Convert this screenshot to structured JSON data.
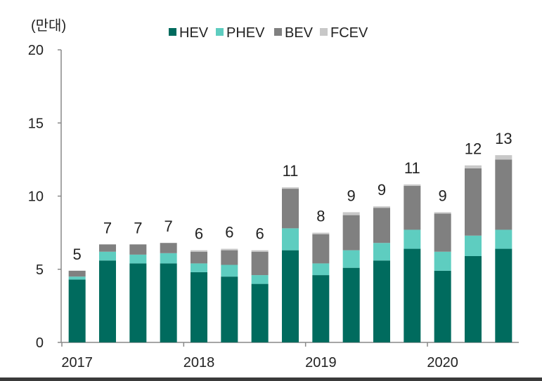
{
  "chart_data": {
    "type": "bar",
    "stacked": true,
    "unit_label": "(만대)",
    "ylim": [
      0,
      20
    ],
    "yticks": [
      0,
      5,
      10,
      15,
      20
    ],
    "year_labels": [
      "2017",
      "2018",
      "2019",
      "2020"
    ],
    "legend_position": "top",
    "grid": false,
    "series": [
      {
        "name": "HEV",
        "color": "#006b5e",
        "values": [
          4.3,
          5.6,
          5.4,
          5.4,
          4.8,
          4.5,
          4.0,
          6.3,
          4.6,
          5.1,
          5.6,
          6.4,
          4.9,
          5.9,
          6.4
        ]
      },
      {
        "name": "PHEV",
        "color": "#5ecdc0",
        "values": [
          0.2,
          0.6,
          0.6,
          0.7,
          0.6,
          0.8,
          0.6,
          1.5,
          0.8,
          1.2,
          1.2,
          1.3,
          1.3,
          1.4,
          1.3
        ]
      },
      {
        "name": "BEV",
        "color": "#808080",
        "values": [
          0.4,
          0.5,
          0.7,
          0.7,
          0.8,
          1.0,
          1.6,
          2.7,
          2.0,
          2.4,
          2.4,
          3.0,
          2.6,
          4.6,
          4.8
        ]
      },
      {
        "name": "FCEV",
        "color": "#c8c8c8",
        "values": [
          0.0,
          0.0,
          0.0,
          0.0,
          0.1,
          0.1,
          0.1,
          0.1,
          0.1,
          0.2,
          0.1,
          0.1,
          0.1,
          0.2,
          0.3
        ]
      }
    ],
    "totals": [
      "5",
      "7",
      "7",
      "7",
      "6",
      "6",
      "6",
      "11",
      "8",
      "9",
      "9",
      "11",
      "9",
      "12",
      "13"
    ]
  }
}
